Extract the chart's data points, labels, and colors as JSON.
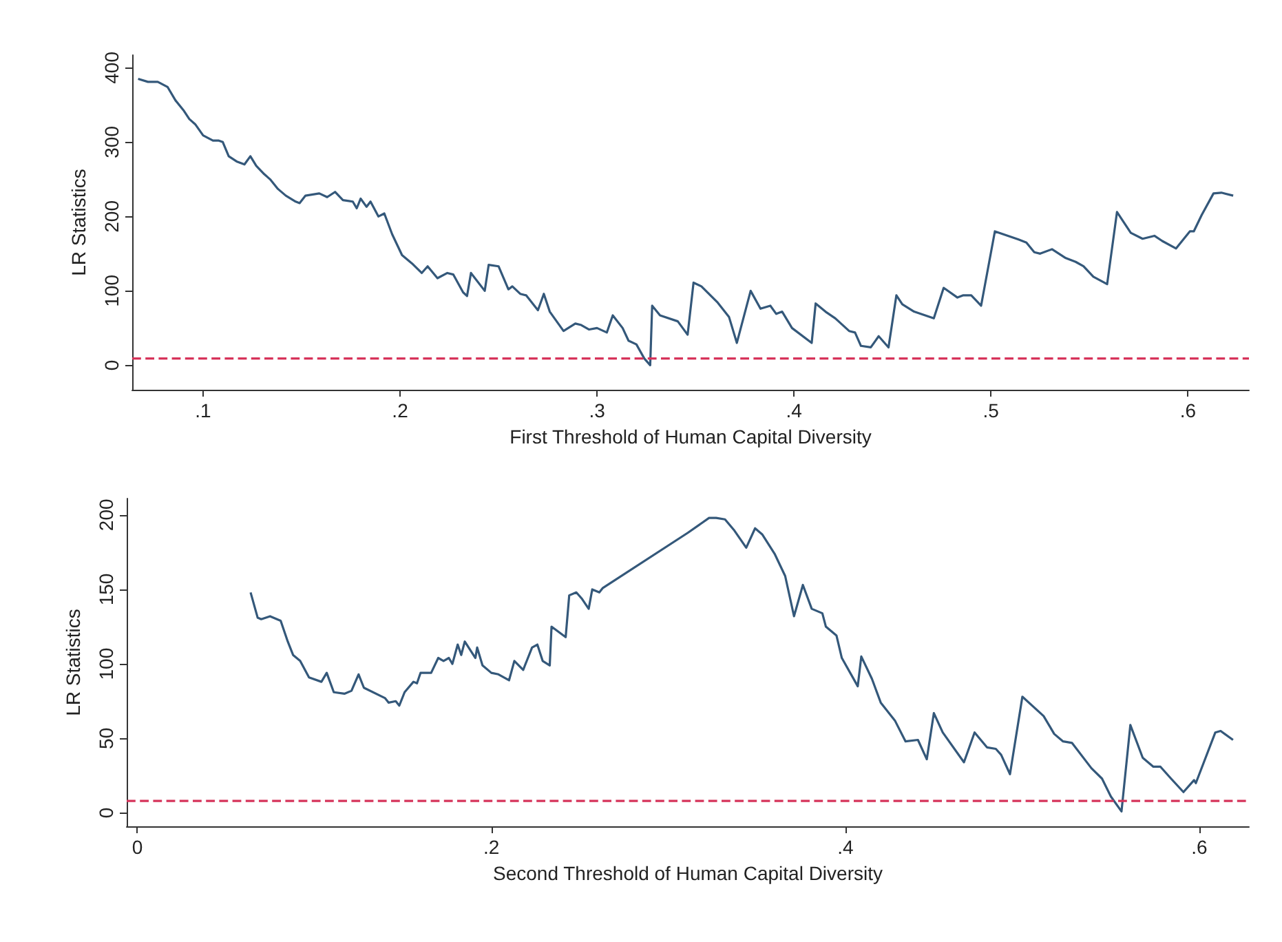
{
  "chart_data": [
    {
      "type": "line",
      "xlabel": "First Threshold of Human Capital Diversity",
      "ylabel": "LR Statistics",
      "color": "#34587a",
      "grid": false,
      "xlim": [
        0.064,
        0.631
      ],
      "ylim": [
        -33,
        417
      ],
      "xticks": [
        {
          "value": 0.1,
          "label": ".1"
        },
        {
          "value": 0.2,
          "label": ".2"
        },
        {
          "value": 0.3,
          "label": ".3"
        },
        {
          "value": 0.4,
          "label": ".4"
        },
        {
          "value": 0.5,
          "label": ".5"
        },
        {
          "value": 0.6,
          "label": ".6"
        }
      ],
      "yticks": [
        0,
        100,
        200,
        300,
        400
      ],
      "ref_lines": [
        {
          "axis": "y",
          "value": 9,
          "color": "#d6335a",
          "line_style": "dashed"
        }
      ],
      "x": [
        0.067,
        0.072,
        0.077,
        0.082,
        0.086,
        0.09,
        0.093,
        0.096,
        0.1,
        0.105,
        0.108,
        0.11,
        0.113,
        0.117,
        0.121,
        0.124,
        0.127,
        0.131,
        0.134,
        0.138,
        0.142,
        0.147,
        0.149,
        0.152,
        0.159,
        0.163,
        0.167,
        0.171,
        0.176,
        0.178,
        0.18,
        0.183,
        0.185,
        0.189,
        0.192,
        0.196,
        0.201,
        0.206,
        0.211,
        0.214,
        0.219,
        0.224,
        0.227,
        0.232,
        0.234,
        0.236,
        0.243,
        0.245,
        0.25,
        0.255,
        0.257,
        0.261,
        0.264,
        0.27,
        0.273,
        0.276,
        0.283,
        0.289,
        0.292,
        0.296,
        0.3,
        0.305,
        0.308,
        0.313,
        0.316,
        0.32,
        0.324,
        0.327,
        0.328,
        0.332,
        0.341,
        0.346,
        0.349,
        0.353,
        0.361,
        0.367,
        0.371,
        0.378,
        0.383,
        0.388,
        0.391,
        0.394,
        0.399,
        0.409,
        0.411,
        0.416,
        0.421,
        0.428,
        0.431,
        0.434,
        0.439,
        0.443,
        0.448,
        0.452,
        0.455,
        0.461,
        0.471,
        0.476,
        0.483,
        0.486,
        0.49,
        0.495,
        0.502,
        0.514,
        0.518,
        0.522,
        0.525,
        0.531,
        0.538,
        0.543,
        0.547,
        0.552,
        0.559,
        0.564,
        0.571,
        0.577,
        0.583,
        0.587,
        0.594,
        0.601,
        0.603,
        0.607,
        0.613,
        0.617,
        0.623
      ],
      "values": [
        385,
        381,
        381,
        374,
        356,
        343,
        331,
        324,
        309,
        302,
        302,
        300,
        281,
        274,
        270,
        281,
        268,
        257,
        250,
        237,
        228,
        220,
        218,
        228,
        231,
        226,
        233,
        222,
        220,
        211,
        224,
        213,
        220,
        200,
        204,
        176,
        148,
        137,
        124,
        133,
        117,
        124,
        122,
        98,
        93,
        124,
        100,
        135,
        133,
        102,
        106,
        96,
        94,
        74,
        96,
        72,
        46,
        56,
        54,
        48,
        50,
        44,
        67,
        50,
        33,
        28,
        9,
        0,
        80,
        67,
        59,
        41,
        111,
        106,
        85,
        65,
        30,
        100,
        76,
        80,
        69,
        72,
        50,
        30,
        83,
        72,
        63,
        46,
        44,
        26,
        24,
        39,
        24,
        94,
        82,
        72,
        63,
        104,
        91,
        94,
        94,
        80,
        180,
        169,
        165,
        152,
        150,
        156,
        144,
        139,
        133,
        119,
        109,
        206,
        178,
        170,
        174,
        167,
        157,
        180,
        180,
        202,
        231,
        232,
        228
      ]
    },
    {
      "type": "line",
      "xlabel": "Second Threshold of Human Capital Diversity",
      "ylabel": "LR Statistics",
      "color": "#34587a",
      "grid": false,
      "xlim": [
        -0.006,
        0.628
      ],
      "ylim": [
        -9,
        211
      ],
      "xticks": [
        0,
        {
          "value": 0.2,
          "label": ".2"
        },
        {
          "value": 0.4,
          "label": ".4"
        },
        {
          "value": 0.6,
          "label": ".6"
        }
      ],
      "yticks": [
        0,
        50,
        100,
        150,
        200
      ],
      "ref_lines": [
        {
          "axis": "y",
          "value": 8,
          "color": "#d6335a",
          "line_style": "dashed"
        }
      ],
      "x": [
        0.064,
        0.068,
        0.07,
        0.075,
        0.081,
        0.085,
        0.088,
        0.092,
        0.097,
        0.104,
        0.107,
        0.111,
        0.117,
        0.121,
        0.125,
        0.128,
        0.14,
        0.142,
        0.146,
        0.148,
        0.151,
        0.156,
        0.158,
        0.16,
        0.166,
        0.17,
        0.173,
        0.176,
        0.178,
        0.181,
        0.183,
        0.185,
        0.191,
        0.192,
        0.195,
        0.2,
        0.204,
        0.21,
        0.213,
        0.218,
        0.223,
        0.226,
        0.229,
        0.233,
        0.234,
        0.242,
        0.244,
        0.248,
        0.251,
        0.255,
        0.257,
        0.261,
        0.263,
        0.311,
        0.323,
        0.327,
        0.332,
        0.337,
        0.344,
        0.349,
        0.353,
        0.36,
        0.366,
        0.371,
        0.376,
        0.381,
        0.387,
        0.389,
        0.395,
        0.398,
        0.407,
        0.409,
        0.415,
        0.42,
        0.428,
        0.434,
        0.441,
        0.446,
        0.45,
        0.455,
        0.467,
        0.473,
        0.48,
        0.485,
        0.488,
        0.493,
        0.5,
        0.512,
        0.518,
        0.523,
        0.528,
        0.539,
        0.545,
        0.55,
        0.556,
        0.561,
        0.568,
        0.574,
        0.578,
        0.584,
        0.591,
        0.597,
        0.598,
        0.609,
        0.612,
        0.619
      ],
      "values": [
        148,
        131,
        130,
        132,
        129,
        115,
        106,
        102,
        91,
        88,
        94,
        81,
        80,
        82,
        93,
        84,
        77,
        74,
        75,
        72,
        81,
        88,
        87,
        94,
        94,
        104,
        102,
        104,
        100,
        113,
        106,
        115,
        104,
        111,
        99,
        94,
        93,
        89,
        102,
        96,
        111,
        113,
        102,
        99,
        125,
        118,
        146,
        148,
        144,
        137,
        150,
        148,
        151,
        188,
        198,
        198,
        197,
        190,
        178,
        191,
        187,
        174,
        159,
        132,
        153,
        137,
        134,
        125,
        119,
        104,
        85,
        105,
        90,
        74,
        62,
        48,
        49,
        36,
        67,
        54,
        34,
        54,
        44,
        43,
        39,
        26,
        78,
        65,
        53,
        48,
        47,
        30,
        23,
        11,
        1,
        59,
        37,
        31,
        31,
        23,
        14,
        22,
        20,
        54,
        55,
        49
      ]
    }
  ]
}
